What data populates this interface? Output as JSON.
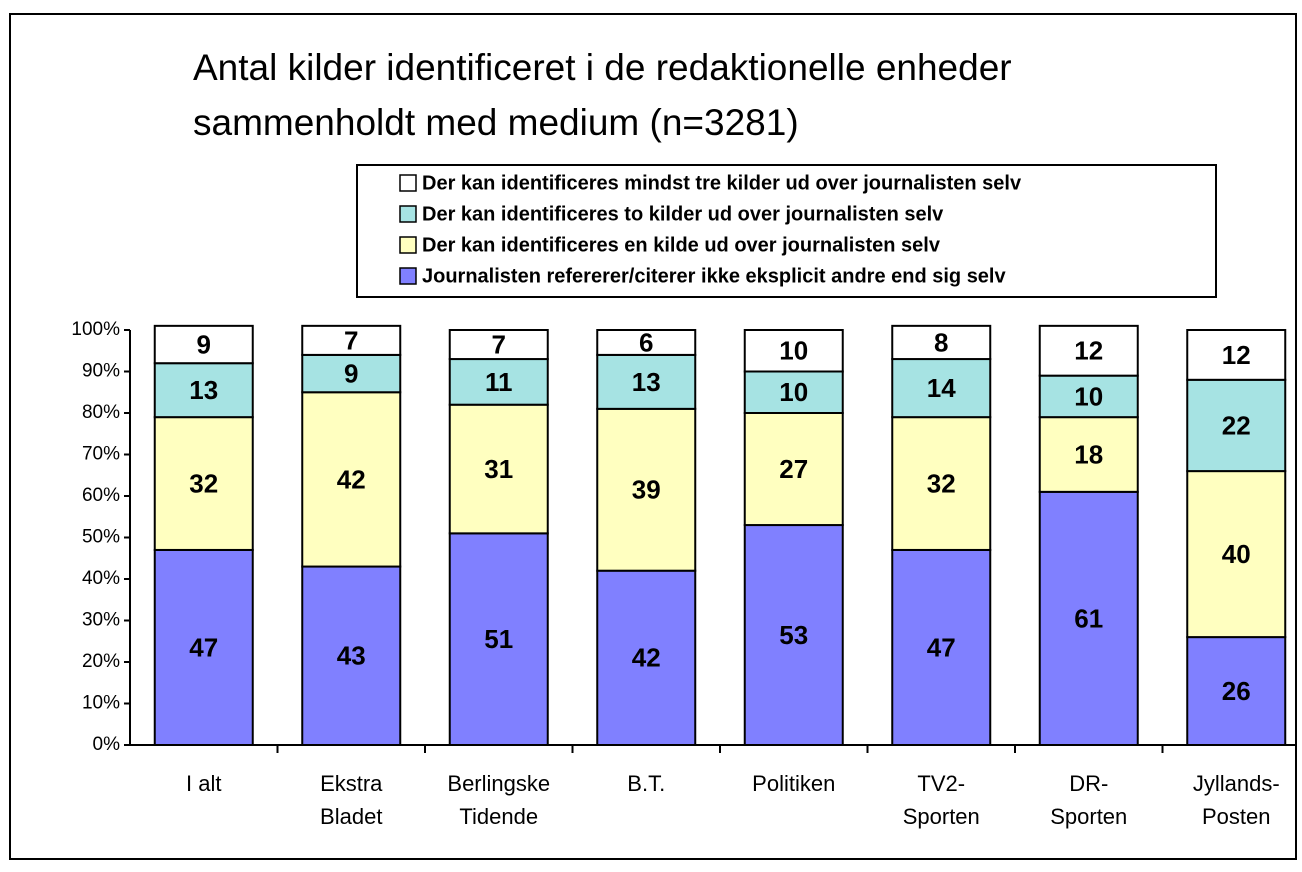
{
  "chart_data": {
    "type": "stacked_bar",
    "title": [
      "Antal kilder identificeret i de redaktionelle enheder",
      "sammenholdt med medium (n=3281)"
    ],
    "categories": [
      [
        "I alt"
      ],
      [
        "Ekstra",
        "Bladet"
      ],
      [
        "Berlingske",
        "Tidende"
      ],
      [
        "B.T."
      ],
      [
        "Politiken"
      ],
      [
        "TV2-",
        "Sporten"
      ],
      [
        "DR-",
        "Sporten"
      ],
      [
        "Jyllands-",
        "Posten"
      ]
    ],
    "series": [
      {
        "name": "Journalisten refererer/citerer ikke eksplicit andre end sig selv",
        "color": "#8080ff",
        "values": [
          47,
          43,
          51,
          42,
          53,
          47,
          61,
          26
        ]
      },
      {
        "name": "Der kan identificeres en kilde ud over journalisten selv",
        "color": "#ffffc0",
        "values": [
          32,
          42,
          31,
          39,
          27,
          32,
          18,
          40
        ]
      },
      {
        "name": "Der kan identificeres to kilder ud over journalisten selv",
        "color": "#a6e3e3",
        "values": [
          13,
          9,
          11,
          13,
          10,
          14,
          10,
          22
        ]
      },
      {
        "name": "Der kan identificeres mindst tre kilder ud over journalisten selv",
        "color": "#ffffff",
        "values": [
          9,
          7,
          7,
          6,
          10,
          8,
          12,
          12
        ]
      }
    ],
    "ylim": [
      0,
      100
    ],
    "yticks": [
      {
        "value": 0,
        "label": "0%"
      },
      {
        "value": 10,
        "label": "10%"
      },
      {
        "value": 20,
        "label": "20%"
      },
      {
        "value": 30,
        "label": "30%"
      },
      {
        "value": 40,
        "label": "40%"
      },
      {
        "value": 50,
        "label": "50%"
      },
      {
        "value": 60,
        "label": "60%"
      },
      {
        "value": 70,
        "label": "70%"
      },
      {
        "value": 80,
        "label": "80%"
      },
      {
        "value": 90,
        "label": "90%"
      },
      {
        "value": 100,
        "label": "100%"
      }
    ],
    "legend": "top-right"
  }
}
